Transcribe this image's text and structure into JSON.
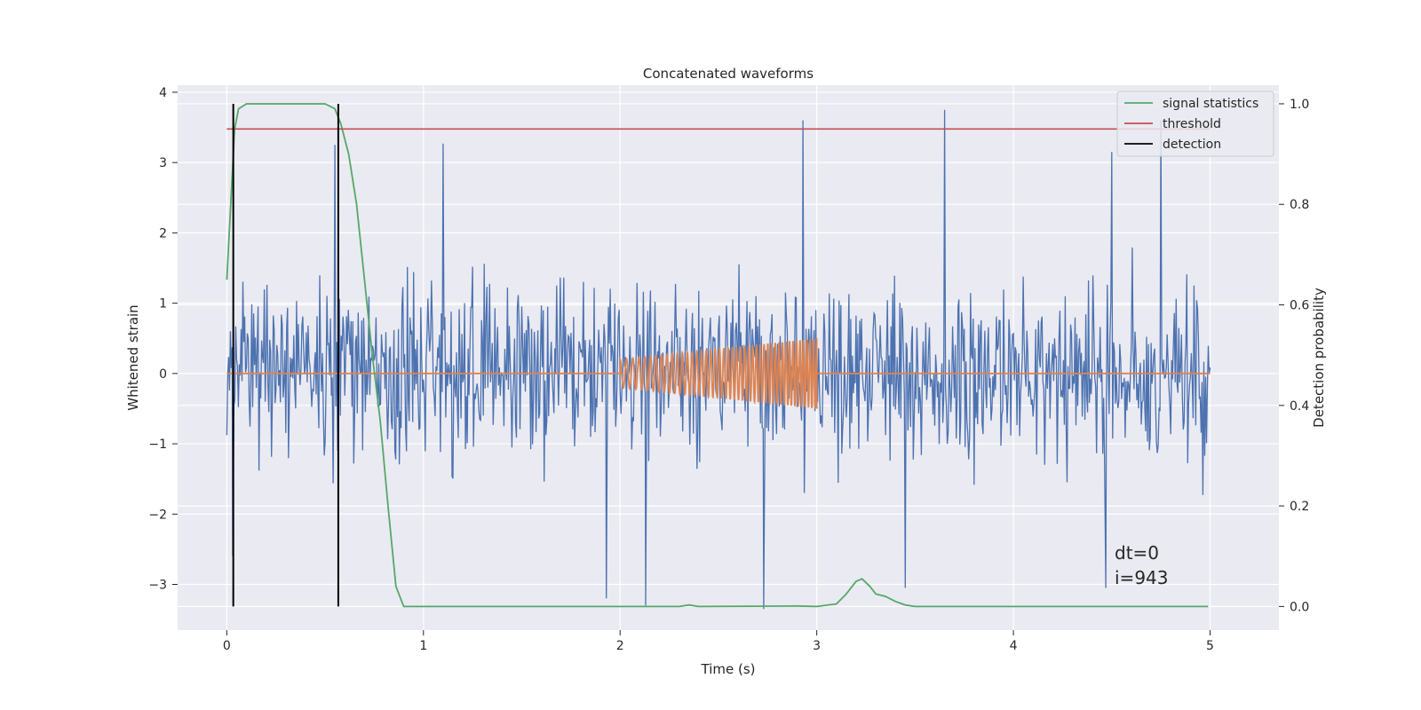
{
  "chart_data": {
    "type": "line",
    "title": "Concatenated waveforms",
    "xlabel": "Time (s)",
    "ylabel": "Whitened strain",
    "y2label": "Detection probability",
    "xlim": [
      -0.25,
      5.35
    ],
    "ylim": [
      -3.65,
      4.1
    ],
    "y2lim": [
      -0.047,
      1.037
    ],
    "x_ticks": [
      "0",
      "1",
      "2",
      "3",
      "4",
      "5"
    ],
    "x_tick_values": [
      0,
      1,
      2,
      3,
      4,
      5
    ],
    "y_ticks": [
      "4",
      "3",
      "2",
      "1",
      "0",
      "−1",
      "−2",
      "−3"
    ],
    "y_tick_values": [
      4,
      3,
      2,
      1,
      0,
      -1,
      -2,
      -3
    ],
    "y2_ticks": [
      "1.0",
      "0.8",
      "0.6",
      "0.4",
      "0.2",
      "0.0"
    ],
    "y2_tick_values": [
      1.0,
      0.8,
      0.6,
      0.4,
      0.2,
      0.0
    ],
    "grid": true,
    "legend_position": "top-right",
    "series": [
      {
        "name": "",
        "color": "#4c72b0",
        "kind": "noise",
        "x_range": [
          0,
          5
        ],
        "typical_range": [
          -1.8,
          2.2
        ],
        "extreme_peaks": [
          [
            0.55,
            3.25
          ],
          [
            1.1,
            3.27
          ],
          [
            2.93,
            3.6
          ],
          [
            3.65,
            3.75
          ],
          [
            4.75,
            3.6
          ],
          [
            4.5,
            3.15
          ]
        ],
        "extreme_dips": [
          [
            1.93,
            -3.2
          ],
          [
            2.13,
            -3.3
          ],
          [
            2.73,
            -3.35
          ],
          [
            3.45,
            -3.05
          ],
          [
            4.47,
            -3.05
          ],
          [
            0.03,
            -2.6
          ]
        ]
      },
      {
        "name": "",
        "color": "#dd8452",
        "kind": "chirp",
        "x": [
          0,
          2,
          2,
          3,
          3,
          5
        ],
        "chirp_start": 2.0,
        "chirp_end": 3.0,
        "amplitude_start": 0.2,
        "amplitude_end": 0.5
      },
      {
        "name": "signal statistics",
        "color": "#55a868",
        "axis": "right",
        "x": [
          0.0,
          0.02,
          0.04,
          0.06,
          0.1,
          0.2,
          0.35,
          0.5,
          0.55,
          0.58,
          0.62,
          0.66,
          0.7,
          0.74,
          0.78,
          0.82,
          0.86,
          0.9,
          1.2,
          2.3,
          2.35,
          2.4,
          2.9,
          3.0,
          3.1,
          3.15,
          3.2,
          3.23,
          3.27,
          3.3,
          3.35,
          3.4,
          3.45,
          3.5,
          4.99
        ],
        "y": [
          0.65,
          0.8,
          0.95,
          0.99,
          1.0,
          1.0,
          1.0,
          1.0,
          0.99,
          0.96,
          0.9,
          0.8,
          0.65,
          0.5,
          0.37,
          0.2,
          0.04,
          0.0,
          0.0,
          0.0,
          0.003,
          0.0,
          0.001,
          0.0,
          0.005,
          0.025,
          0.05,
          0.055,
          0.04,
          0.025,
          0.02,
          0.01,
          0.003,
          0.0,
          0.0
        ]
      },
      {
        "name": "threshold",
        "color": "#c44e52",
        "axis": "right",
        "x": [
          0,
          5
        ],
        "y": [
          0.95,
          0.95
        ]
      },
      {
        "name": "detection",
        "color": "#000000",
        "axis": "right",
        "kind": "vlines",
        "x": [
          0.033,
          0.567
        ],
        "y_range": [
          0.0,
          1.0
        ]
      }
    ],
    "legend": [
      "signal statistics",
      "threshold",
      "detection"
    ],
    "annotations": [
      "dt=0",
      "i=943"
    ]
  }
}
